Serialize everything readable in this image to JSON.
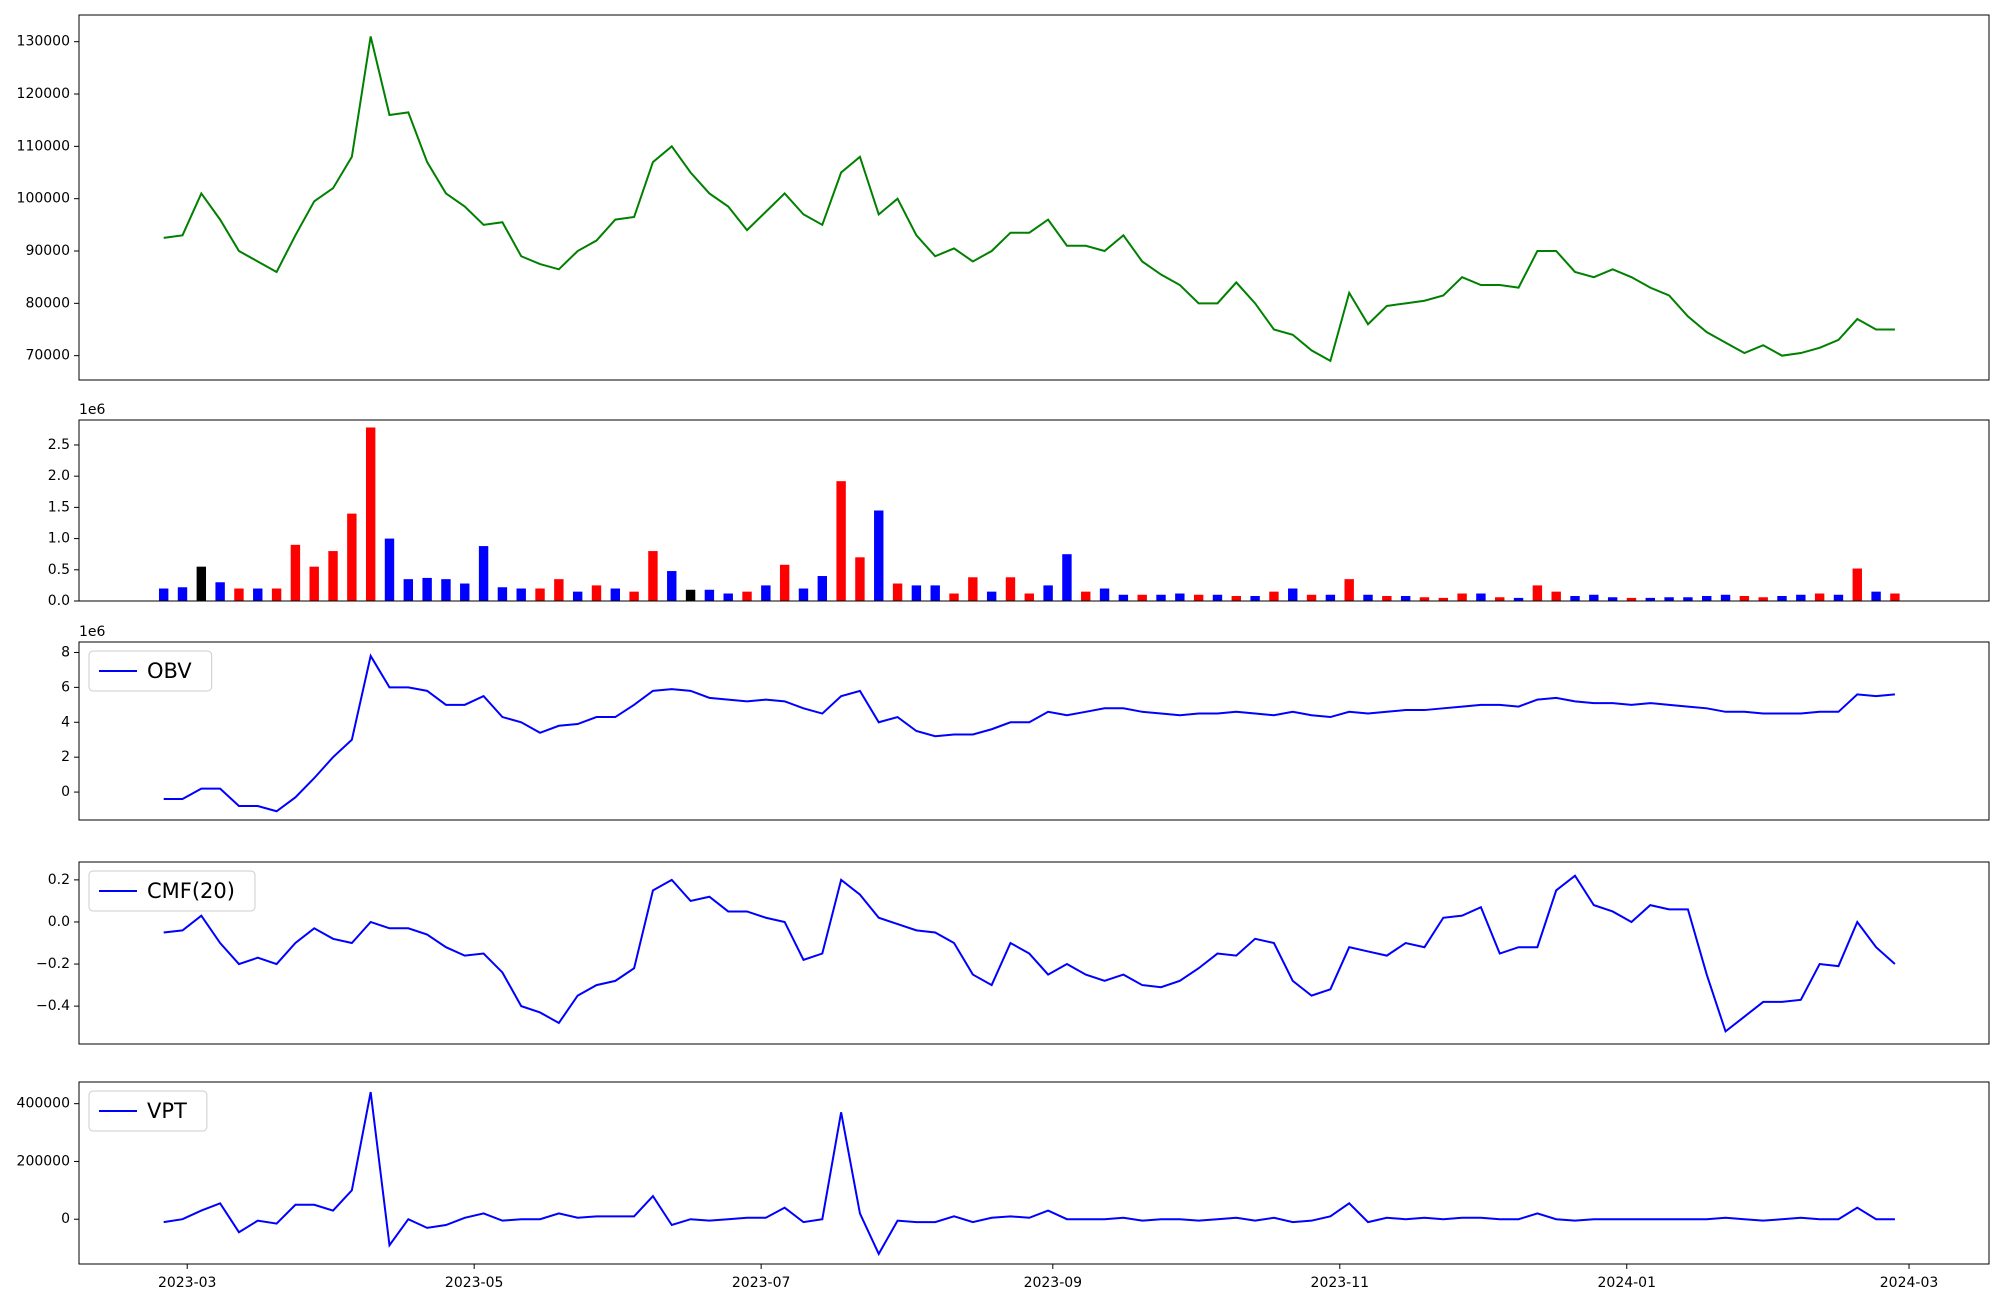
{
  "chart_data": {
    "type": "multi-panel",
    "x": [
      "2023-02-24",
      "2023-02-28",
      "2023-03-04",
      "2023-03-08",
      "2023-03-12",
      "2023-03-16",
      "2023-03-20",
      "2023-03-24",
      "2023-03-28",
      "2023-04-01",
      "2023-04-05",
      "2023-04-09",
      "2023-04-13",
      "2023-04-17",
      "2023-04-21",
      "2023-04-25",
      "2023-04-29",
      "2023-05-03",
      "2023-05-07",
      "2023-05-11",
      "2023-05-15",
      "2023-05-19",
      "2023-05-23",
      "2023-05-27",
      "2023-05-31",
      "2023-06-04",
      "2023-06-08",
      "2023-06-12",
      "2023-06-16",
      "2023-06-20",
      "2023-06-24",
      "2023-06-28",
      "2023-07-02",
      "2023-07-06",
      "2023-07-10",
      "2023-07-14",
      "2023-07-18",
      "2023-07-22",
      "2023-07-26",
      "2023-07-30",
      "2023-08-03",
      "2023-08-07",
      "2023-08-11",
      "2023-08-15",
      "2023-08-19",
      "2023-08-23",
      "2023-08-27",
      "2023-08-31",
      "2023-09-04",
      "2023-09-08",
      "2023-09-12",
      "2023-09-16",
      "2023-09-20",
      "2023-09-24",
      "2023-09-28",
      "2023-10-02",
      "2023-10-06",
      "2023-10-10",
      "2023-10-14",
      "2023-10-18",
      "2023-10-22",
      "2023-10-26",
      "2023-10-30",
      "2023-11-03",
      "2023-11-07",
      "2023-11-11",
      "2023-11-15",
      "2023-11-19",
      "2023-11-23",
      "2023-11-27",
      "2023-12-01",
      "2023-12-05",
      "2023-12-09",
      "2023-12-13",
      "2023-12-17",
      "2023-12-21",
      "2023-12-25",
      "2023-12-29",
      "2024-01-02",
      "2024-01-06",
      "2024-01-10",
      "2024-01-14",
      "2024-01-18",
      "2024-01-22",
      "2024-01-26",
      "2024-01-30",
      "2024-02-03",
      "2024-02-07",
      "2024-02-11",
      "2024-02-15",
      "2024-02-19",
      "2024-02-23",
      "2024-02-27"
    ],
    "xlim": [
      "2023-02-06",
      "2024-03-18"
    ],
    "xticks": [
      {
        "value": "2023-03-01",
        "label": "2023-03"
      },
      {
        "value": "2023-05-01",
        "label": "2023-05"
      },
      {
        "value": "2023-07-01",
        "label": "2023-07"
      },
      {
        "value": "2023-09-01",
        "label": "2023-09"
      },
      {
        "value": "2023-11-01",
        "label": "2023-11"
      },
      {
        "value": "2024-01-01",
        "label": "2024-01"
      },
      {
        "value": "2024-03-01",
        "label": "2024-03"
      }
    ],
    "panels": [
      {
        "type": "line",
        "ylim": [
          65350,
          135100
        ],
        "yticks": [
          70000,
          80000,
          90000,
          100000,
          110000,
          120000,
          130000
        ],
        "series": [
          {
            "color": "green",
            "values": [
              92500,
              93000,
              101000,
              96000,
              90000,
              88000,
              86000,
              93000,
              99500,
              102000,
              108000,
              131000,
              116000,
              116500,
              107000,
              101000,
              98500,
              95000,
              95500,
              89000,
              87500,
              86500,
              90000,
              92000,
              96000,
              96500,
              107000,
              110000,
              105000,
              101000,
              98500,
              94000,
              97500,
              101000,
              97000,
              95000,
              105000,
              108000,
              97000,
              100000,
              93000,
              89000,
              90500,
              88000,
              90000,
              93500,
              93500,
              96000,
              91000,
              91000,
              90000,
              93000,
              88000,
              85500,
              83500,
              80000,
              80000,
              84000,
              80000,
              75000,
              74000,
              71000,
              69000,
              82000,
              76000,
              79500,
              80000,
              80500,
              81500,
              85000,
              83500,
              83500,
              83000,
              90000,
              90000,
              86000,
              85000,
              86500,
              85000,
              83000,
              81500,
              77500,
              74500,
              72500,
              70500,
              72000,
              70000,
              70500,
              71500,
              73000,
              77000,
              75000,
              75000
            ]
          }
        ]
      },
      {
        "type": "bar",
        "ylim": [
          0,
          2.9
        ],
        "offset_label": "1e6",
        "yticks": [
          {
            "value": 0,
            "label": "0.0"
          },
          0.5,
          {
            "value": 1,
            "label": "1.0"
          },
          1.5,
          {
            "value": 2,
            "label": "2.0"
          },
          2.5
        ],
        "values": [
          0.2,
          0.22,
          0.55,
          0.3,
          0.2,
          0.2,
          0.2,
          0.9,
          0.55,
          0.8,
          1.4,
          2.78,
          1.0,
          0.35,
          0.37,
          0.35,
          0.28,
          0.88,
          0.22,
          0.2,
          0.2,
          0.35,
          0.15,
          0.25,
          0.2,
          0.15,
          0.8,
          0.48,
          0.18,
          0.18,
          0.12,
          0.15,
          0.25,
          0.58,
          0.2,
          0.4,
          1.92,
          0.7,
          1.45,
          0.28,
          0.25,
          0.25,
          0.12,
          0.38,
          0.15,
          0.38,
          0.12,
          0.25,
          0.75,
          0.15,
          0.2,
          0.1,
          0.1,
          0.1,
          0.12,
          0.1,
          0.1,
          0.08,
          0.08,
          0.15,
          0.2,
          0.1,
          0.1,
          0.35,
          0.1,
          0.08,
          0.08,
          0.06,
          0.05,
          0.12,
          0.12,
          0.06,
          0.05,
          0.25,
          0.15,
          0.08,
          0.1,
          0.06,
          0.05,
          0.05,
          0.06,
          0.06,
          0.08,
          0.1,
          0.08,
          0.06,
          0.08,
          0.1,
          0.12,
          0.1,
          0.52,
          0.15,
          0.12
        ],
        "colors": [
          "blue",
          "blue",
          "black",
          "blue",
          "red",
          "blue",
          "red",
          "red",
          "red",
          "red",
          "red",
          "red",
          "blue",
          "blue",
          "blue",
          "blue",
          "blue",
          "blue",
          "blue",
          "blue",
          "red",
          "red",
          "blue",
          "red",
          "blue",
          "red",
          "red",
          "blue",
          "black",
          "blue",
          "blue",
          "red",
          "blue",
          "red",
          "blue",
          "blue",
          "red",
          "red",
          "blue",
          "red",
          "blue",
          "blue",
          "red",
          "red",
          "blue",
          "red",
          "red",
          "blue",
          "blue",
          "red",
          "blue",
          "blue",
          "red",
          "blue",
          "blue",
          "red",
          "blue",
          "red",
          "blue",
          "red",
          "blue",
          "red",
          "blue",
          "red",
          "blue",
          "red",
          "blue",
          "red",
          "red",
          "red",
          "blue",
          "red",
          "blue",
          "red",
          "red",
          "blue",
          "blue",
          "blue",
          "red",
          "blue",
          "blue",
          "blue",
          "blue",
          "blue",
          "red",
          "red",
          "blue",
          "blue",
          "red",
          "blue",
          "red",
          "blue",
          "red"
        ]
      },
      {
        "type": "line",
        "ylim": [
          -1.6,
          8.6
        ],
        "yticks": [
          0,
          2,
          4,
          6,
          8
        ],
        "offset_label": "1e6",
        "legend": "upper left",
        "series": [
          {
            "name": "OBV",
            "color": "blue",
            "values": [
              -0.4,
              -0.4,
              0.2,
              0.2,
              -0.8,
              -0.8,
              -1.1,
              -0.3,
              0.8,
              2.0,
              3.0,
              7.8,
              6.0,
              6.0,
              5.8,
              5.0,
              5.0,
              5.5,
              4.3,
              4.0,
              3.4,
              3.8,
              3.9,
              4.3,
              4.3,
              5.0,
              5.8,
              5.9,
              5.8,
              5.4,
              5.3,
              5.2,
              5.3,
              5.2,
              4.8,
              4.5,
              5.5,
              5.8,
              4.0,
              4.3,
              3.5,
              3.2,
              3.3,
              3.3,
              3.6,
              4.0,
              4.0,
              4.6,
              4.4,
              4.6,
              4.8,
              4.8,
              4.6,
              4.5,
              4.4,
              4.5,
              4.5,
              4.6,
              4.5,
              4.4,
              4.6,
              4.4,
              4.3,
              4.6,
              4.5,
              4.6,
              4.7,
              4.7,
              4.8,
              4.9,
              5.0,
              5.0,
              4.9,
              5.3,
              5.4,
              5.2,
              5.1,
              5.1,
              5.0,
              5.1,
              5.0,
              4.9,
              4.8,
              4.6,
              4.6,
              4.5,
              4.5,
              4.5,
              4.6,
              4.6,
              5.6,
              5.5,
              5.6
            ]
          }
        ]
      },
      {
        "type": "line",
        "ylim": [
          -0.58,
          0.285
        ],
        "legend": "upper left",
        "yticks": [
          {
            "value": -0.4,
            "label": "−0.4"
          },
          {
            "value": -0.2,
            "label": "−0.2"
          },
          {
            "value": 0,
            "label": "0.0"
          },
          0.2
        ],
        "series": [
          {
            "name": "CMF(20)",
            "color": "blue",
            "values": [
              -0.05,
              -0.04,
              0.03,
              -0.1,
              -0.2,
              -0.17,
              -0.2,
              -0.1,
              -0.03,
              -0.08,
              -0.1,
              0.0,
              -0.03,
              -0.03,
              -0.06,
              -0.12,
              -0.16,
              -0.15,
              -0.24,
              -0.4,
              -0.43,
              -0.48,
              -0.35,
              -0.3,
              -0.28,
              -0.22,
              0.15,
              0.2,
              0.1,
              0.12,
              0.05,
              0.05,
              0.02,
              0.0,
              -0.18,
              -0.15,
              0.2,
              0.13,
              0.02,
              -0.01,
              -0.04,
              -0.05,
              -0.1,
              -0.25,
              -0.3,
              -0.1,
              -0.15,
              -0.25,
              -0.2,
              -0.25,
              -0.28,
              -0.25,
              -0.3,
              -0.31,
              -0.28,
              -0.22,
              -0.15,
              -0.16,
              -0.08,
              -0.1,
              -0.28,
              -0.35,
              -0.32,
              -0.12,
              -0.14,
              -0.16,
              -0.1,
              -0.12,
              0.02,
              0.03,
              0.07,
              -0.15,
              -0.12,
              -0.12,
              0.15,
              0.22,
              0.08,
              0.05,
              0.0,
              0.08,
              0.06,
              0.06,
              -0.25,
              -0.52,
              -0.45,
              -0.38,
              -0.38,
              -0.37,
              -0.2,
              -0.21,
              0.0,
              -0.12,
              -0.2
            ]
          }
        ]
      },
      {
        "type": "line",
        "ylim": [
          -155000,
          475000
        ],
        "yticks": [
          0,
          200000,
          400000
        ],
        "legend": "upper left",
        "series": [
          {
            "name": "VPT",
            "color": "blue",
            "values": [
              -10000,
              0,
              30000,
              55000,
              -45000,
              -5000,
              -15000,
              50000,
              50000,
              30000,
              100000,
              440000,
              -90000,
              0,
              -30000,
              -20000,
              5000,
              20000,
              -5000,
              0,
              0,
              20000,
              5000,
              10000,
              10000,
              10000,
              80000,
              -20000,
              0,
              -5000,
              0,
              5000,
              5000,
              40000,
              -10000,
              0,
              370000,
              20000,
              -120000,
              -5000,
              -10000,
              -10000,
              10000,
              -10000,
              5000,
              10000,
              5000,
              30000,
              0,
              0,
              0,
              5000,
              -5000,
              0,
              0,
              -5000,
              0,
              5000,
              -5000,
              5000,
              -10000,
              -5000,
              10000,
              55000,
              -10000,
              5000,
              0,
              5000,
              0,
              5000,
              5000,
              0,
              0,
              20000,
              0,
              -5000,
              0,
              0,
              0,
              0,
              0,
              0,
              0,
              5000,
              0,
              -5000,
              0,
              5000,
              0,
              0,
              40000,
              0,
              0
            ]
          }
        ]
      }
    ]
  }
}
